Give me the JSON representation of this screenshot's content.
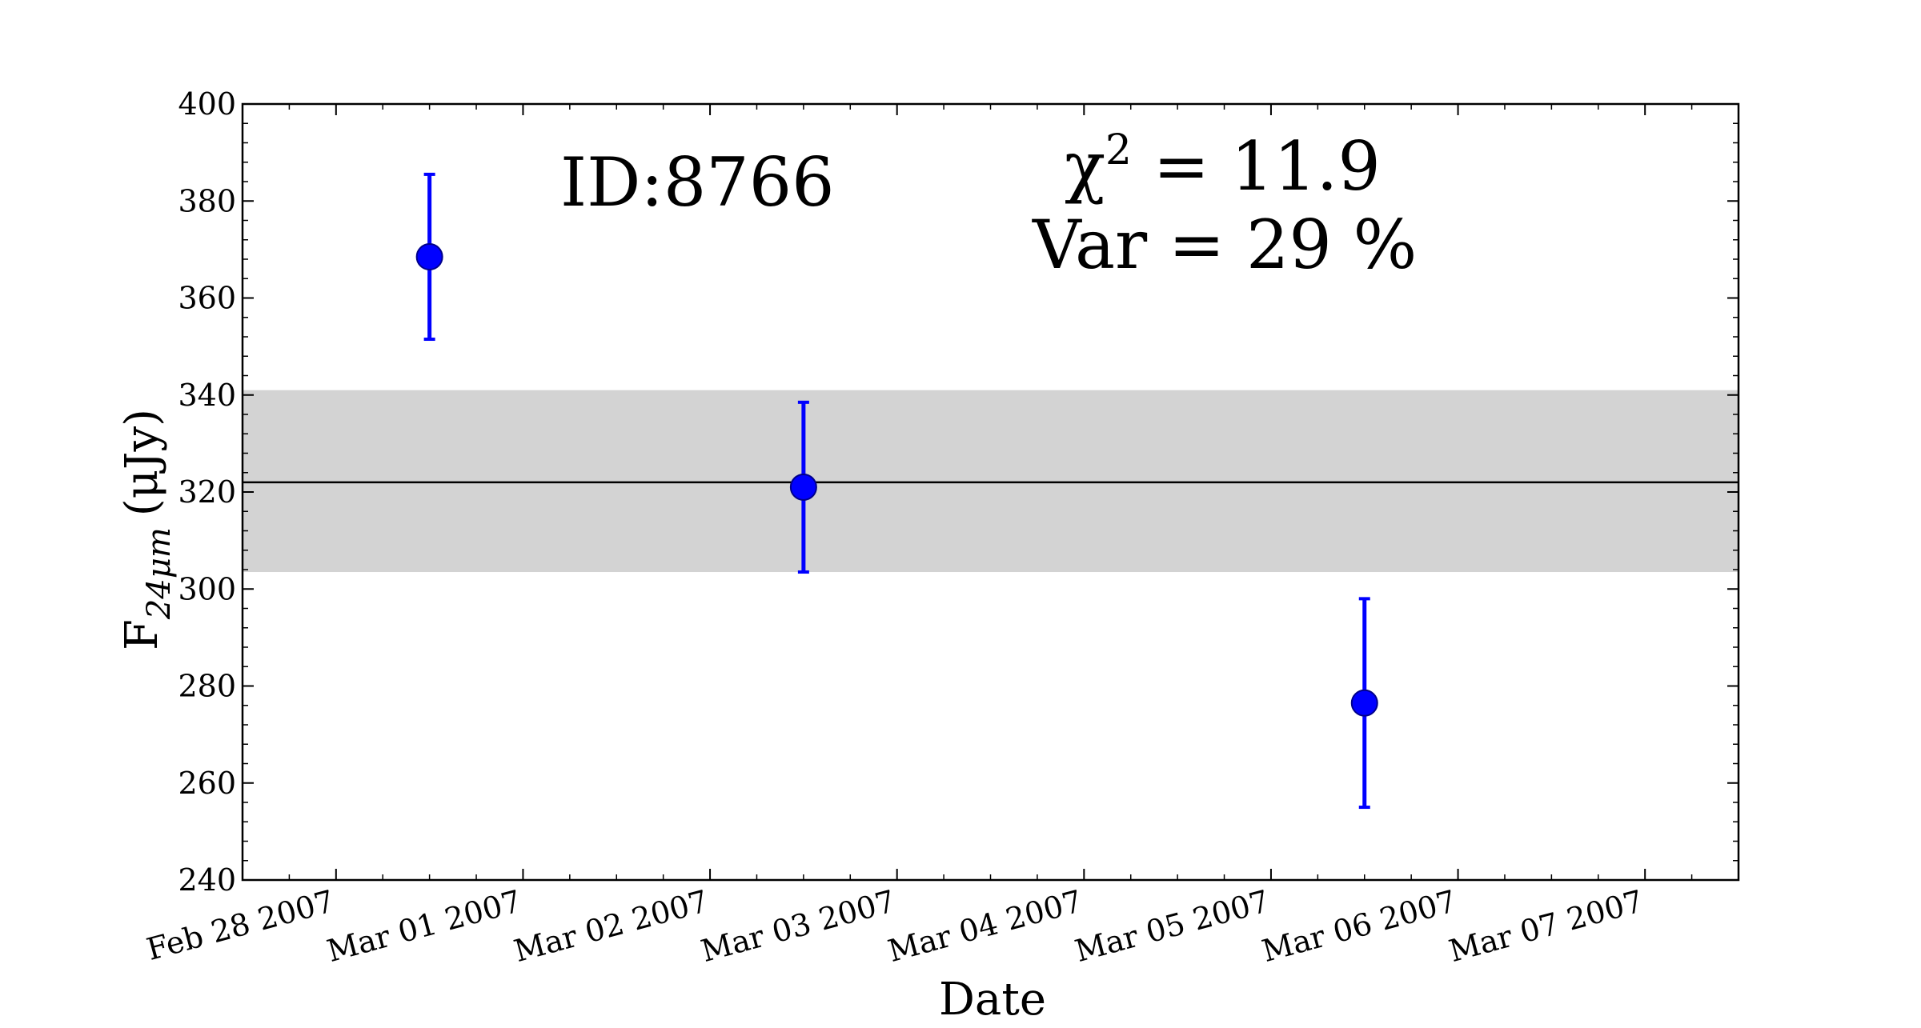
{
  "chart_data": {
    "type": "scatter",
    "title": "",
    "xlabel": "Date",
    "ylabel": {
      "main": "F",
      "subscript": "24μm",
      "unit": "(μJy)"
    },
    "x_tick_labels": [
      "Feb 28 2007",
      "Mar 01 2007",
      "Mar 02 2007",
      "Mar 03 2007",
      "Mar 04 2007",
      "Mar 05 2007",
      "Mar 06 2007",
      "Mar 07 2007"
    ],
    "xlim": [
      "2007-02-27",
      "2007-03-07"
    ],
    "ylim": [
      240,
      400
    ],
    "y_ticks": [
      240,
      260,
      280,
      300,
      320,
      340,
      360,
      380,
      400
    ],
    "series": [
      {
        "color": "#0000ff",
        "points": [
          {
            "x": "2007-02-28",
            "y": 368.5,
            "yerr": 17
          },
          {
            "x": "2007-03-02",
            "y": 321,
            "yerr": 17.5
          },
          {
            "x": "2007-03-05",
            "y": 276.5,
            "yerr": 21.5
          }
        ]
      }
    ],
    "mean_line": {
      "y": 322,
      "color": "#000000"
    },
    "band": {
      "y_low": 303.5,
      "y_high": 341,
      "color": "#d3d3d3"
    },
    "annotations": {
      "id_label": "ID:8766",
      "chi2_symbol": "χ",
      "chi2_exp": "2",
      "chi2_rest": " = 11.9",
      "var_text": "Var = 29 %"
    },
    "grid": false,
    "legend": "none"
  }
}
